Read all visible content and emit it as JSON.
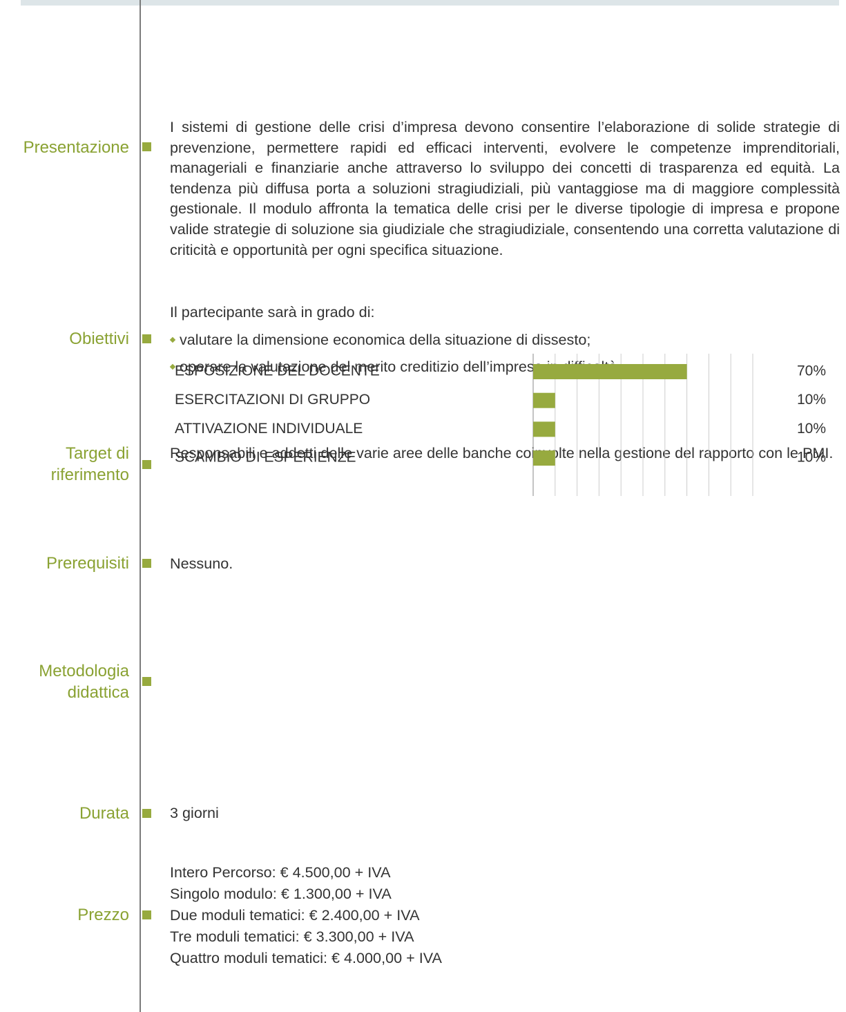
{
  "sections": [
    {
      "label": "Presentazione",
      "text": "I sistemi di gestione delle crisi d’impresa devono consentire l’elaborazione di solide strategie di prevenzione, permettere rapidi ed efficaci interventi, evolvere le competenze imprenditoriali, manageriali e finanziarie anche attraverso lo sviluppo dei concetti di trasparenza ed equità. La tendenza più diffusa porta a soluzioni stragiudiziali, più vantaggiose ma di maggiore complessità gestionale. Il modulo affronta la tematica delle crisi per le diverse tipologie di impresa e propone valide strategie di soluzione sia giudiziale che stragiudiziale, consentendo una corretta valutazione di criticità e opportunità per ogni specifica situazione."
    },
    {
      "label": "Obiettivi",
      "intro": "Il partecipante sarà in grado di:",
      "bullets": [
        "valutare la dimensione economica della situazione di dissesto;",
        "operare la valutazione del merito creditizio dell’impresa in difficoltà."
      ]
    },
    {
      "label": "Target di riferimento",
      "text": "Responsabili e addetti delle varie aree delle banche coinvolte nella gestione del rapporto con le PMI."
    },
    {
      "label": "Prerequisiti",
      "text": "Nessuno."
    },
    {
      "label": "Metodologia didattica"
    },
    {
      "label": "Durata",
      "text": "3 giorni"
    },
    {
      "label": "Prezzo",
      "lines": [
        "Intero Percorso: € 4.500,00 + IVA",
        "Singolo modulo: € 1.300,00 + IVA",
        "Due moduli tematici: € 2.400,00 + IVA",
        "Tre moduli tematici: € 3.300,00 + IVA",
        "Quattro moduli tematici: € 4.000,00 + IVA"
      ]
    }
  ],
  "chart_data": {
    "type": "bar",
    "orientation": "horizontal",
    "categories": [
      "ESPOSIZIONE DEL DOCENTE",
      "ESERCITAZIONI DI GRUPPO",
      "ATTIVAZIONE INDIVIDUALE",
      "SCAMBIO DI ESPERIENZE"
    ],
    "values": [
      70,
      10,
      10,
      10
    ],
    "value_labels": [
      "70%",
      "10%",
      "10%",
      "10%"
    ],
    "color": "#97aa3f",
    "xlim": [
      0,
      100
    ],
    "xticks": [
      0,
      10,
      20,
      30,
      40,
      50,
      60,
      70,
      80,
      90,
      100
    ],
    "grid": true
  }
}
